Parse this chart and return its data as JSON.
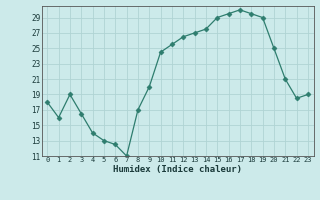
{
  "x": [
    0,
    1,
    2,
    3,
    4,
    5,
    6,
    7,
    8,
    9,
    10,
    11,
    12,
    13,
    14,
    15,
    16,
    17,
    18,
    19,
    20,
    21,
    22,
    23
  ],
  "y": [
    18,
    16,
    19,
    16.5,
    14,
    13,
    12.5,
    11,
    17,
    20,
    24.5,
    25.5,
    26.5,
    27,
    27.5,
    29,
    29.5,
    30,
    29.5,
    29,
    25,
    21,
    18.5,
    19
  ],
  "line_color": "#2e7d6e",
  "marker": "D",
  "marker_size": 2.5,
  "bg_color": "#cceaea",
  "grid_color": "#b0d4d4",
  "xlabel": "Humidex (Indice chaleur)",
  "ylim": [
    11,
    30
  ],
  "yticks": [
    11,
    13,
    15,
    17,
    19,
    21,
    23,
    25,
    27,
    29
  ],
  "xticks": [
    0,
    1,
    2,
    3,
    4,
    5,
    6,
    7,
    8,
    9,
    10,
    11,
    12,
    13,
    14,
    15,
    16,
    17,
    18,
    19,
    20,
    21,
    22,
    23
  ],
  "xlim": [
    -0.5,
    23.5
  ]
}
